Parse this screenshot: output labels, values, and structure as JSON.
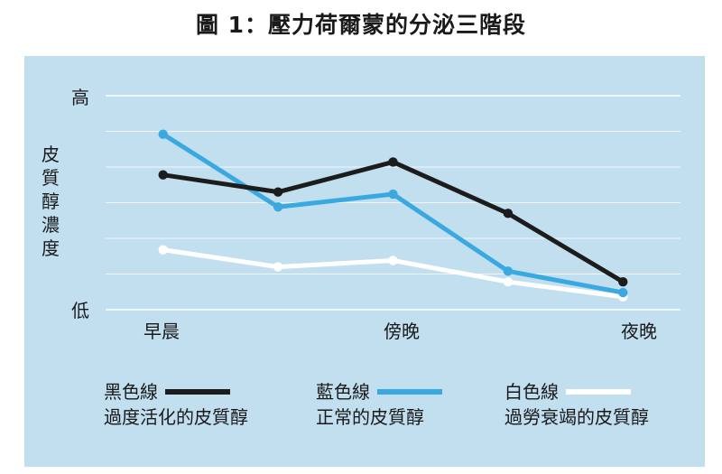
{
  "chart_data": {
    "type": "line",
    "title": "圖 1：壓力荷爾蒙的分泌三階段",
    "ylabel": "皮質醇濃度",
    "yticks": {
      "high": "高",
      "low": "低"
    },
    "ylim": [
      0,
      100
    ],
    "categories": [
      "早晨",
      "",
      "傍晚",
      "",
      "夜晚"
    ],
    "series": [
      {
        "name": "黑色線",
        "description": "過度活化的皮質醇",
        "color": "#1c1c1c",
        "values": [
          63,
          55,
          69,
          45,
          13
        ]
      },
      {
        "name": "藍色線",
        "description": "正常的皮質醇",
        "color": "#3aa9df",
        "values": [
          82,
          48,
          54,
          18,
          8
        ]
      },
      {
        "name": "白色線",
        "description": "過勞衰竭的皮質醇",
        "color": "#ffffff",
        "values": [
          28,
          20,
          23,
          13,
          6
        ]
      }
    ],
    "grid": true,
    "legend_position": "bottom"
  }
}
